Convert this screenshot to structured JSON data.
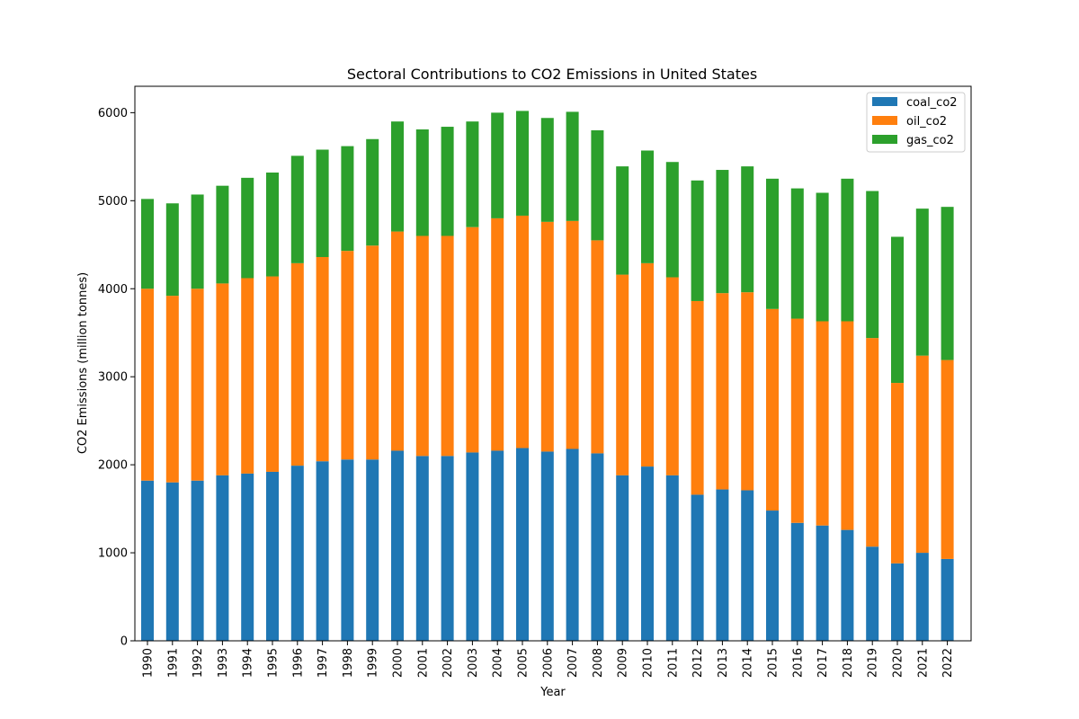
{
  "chart_data": {
    "type": "bar",
    "stacked": true,
    "title": "Sectoral Contributions to CO2 Emissions in United States",
    "xlabel": "Year",
    "ylabel": "CO2 Emissions (million tonnes)",
    "ylim": [
      0,
      6300
    ],
    "yticks": [
      0,
      1000,
      2000,
      3000,
      4000,
      5000,
      6000
    ],
    "grid": false,
    "legend_position": "top-right",
    "categories": [
      "1990",
      "1991",
      "1992",
      "1993",
      "1994",
      "1995",
      "1996",
      "1997",
      "1998",
      "1999",
      "2000",
      "2001",
      "2002",
      "2003",
      "2004",
      "2005",
      "2006",
      "2007",
      "2008",
      "2009",
      "2010",
      "2011",
      "2012",
      "2013",
      "2014",
      "2015",
      "2016",
      "2017",
      "2018",
      "2019",
      "2020",
      "2021",
      "2022"
    ],
    "series": [
      {
        "name": "coal_co2",
        "color": "#1f77b4",
        "values": [
          1820,
          1800,
          1820,
          1880,
          1900,
          1920,
          1990,
          2040,
          2060,
          2060,
          2160,
          2100,
          2100,
          2140,
          2160,
          2190,
          2150,
          2180,
          2130,
          1880,
          1980,
          1880,
          1660,
          1720,
          1710,
          1480,
          1340,
          1310,
          1260,
          1070,
          880,
          1000,
          930
        ]
      },
      {
        "name": "oil_co2",
        "color": "#ff7f0e",
        "values": [
          2180,
          2120,
          2180,
          2180,
          2220,
          2220,
          2300,
          2320,
          2370,
          2430,
          2490,
          2500,
          2500,
          2560,
          2640,
          2640,
          2610,
          2590,
          2420,
          2280,
          2310,
          2250,
          2200,
          2230,
          2250,
          2290,
          2320,
          2320,
          2370,
          2370,
          2050,
          2240,
          2260
        ]
      },
      {
        "name": "gas_co2",
        "color": "#2ca02c",
        "values": [
          1020,
          1050,
          1070,
          1110,
          1140,
          1180,
          1220,
          1220,
          1190,
          1210,
          1250,
          1210,
          1240,
          1200,
          1200,
          1190,
          1180,
          1240,
          1250,
          1230,
          1280,
          1310,
          1370,
          1400,
          1430,
          1480,
          1480,
          1460,
          1620,
          1670,
          1660,
          1670,
          1740
        ]
      }
    ]
  }
}
